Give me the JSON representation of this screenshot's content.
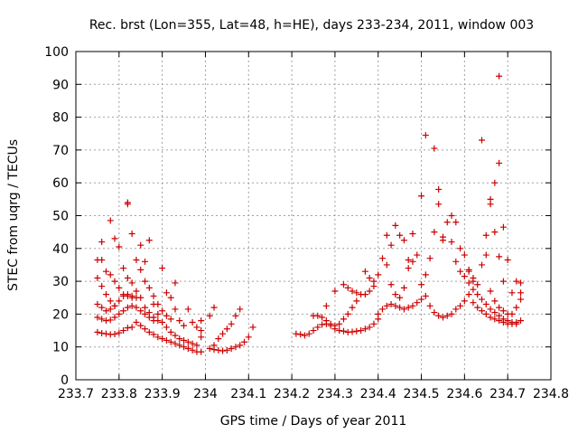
{
  "chart_data": {
    "type": "scatter",
    "title": "Rec. brst (Lon=355, Lat=48, h=HE), days 233-234, 2011, window 003",
    "xlabel": "GPS time / Days of year 2011",
    "ylabel": "STEC from uqrg / TECUs",
    "xlim": [
      233.7,
      234.8
    ],
    "ylim": [
      0,
      100
    ],
    "xticks": [
      233.7,
      233.8,
      233.9,
      234.0,
      234.1,
      234.2,
      234.3,
      234.4,
      234.5,
      234.6,
      234.7,
      234.8
    ],
    "xtick_labels": [
      "233.7",
      "233.8",
      "233.9",
      "234",
      "234.1",
      "234.2",
      "234.3",
      "234.4",
      "234.5",
      "234.6",
      "234.7",
      "234.8"
    ],
    "yticks": [
      0,
      10,
      20,
      30,
      40,
      50,
      60,
      70,
      80,
      90,
      100
    ],
    "ytick_labels": [
      "0",
      "10",
      "20",
      "30",
      "40",
      "50",
      "60",
      "70",
      "80",
      "90",
      "100"
    ],
    "grid": true,
    "marker": "plus",
    "color": "#cc0000",
    "series": [
      {
        "points": [
          [
            233.75,
            14.5
          ],
          [
            233.76,
            14.2
          ],
          [
            233.77,
            14.0
          ],
          [
            233.78,
            13.8
          ],
          [
            233.79,
            13.9
          ],
          [
            233.8,
            14.3
          ],
          [
            233.81,
            15.0
          ],
          [
            233.82,
            15.8
          ],
          [
            233.83,
            16.0
          ],
          [
            233.75,
            19.0
          ],
          [
            233.76,
            18.5
          ],
          [
            233.77,
            18.0
          ],
          [
            233.78,
            18.2
          ],
          [
            233.79,
            19.0
          ],
          [
            233.8,
            20.0
          ],
          [
            233.81,
            21.0
          ],
          [
            233.82,
            22.0
          ],
          [
            233.83,
            22.5
          ],
          [
            233.84,
            22.0
          ],
          [
            233.85,
            21.0
          ],
          [
            233.86,
            20.0
          ],
          [
            233.87,
            19.0
          ],
          [
            233.88,
            18.0
          ],
          [
            233.75,
            23.0
          ],
          [
            233.76,
            22.0
          ],
          [
            233.77,
            21.0
          ],
          [
            233.78,
            21.5
          ],
          [
            233.79,
            22.5
          ],
          [
            233.8,
            24.0
          ],
          [
            233.81,
            25.5
          ],
          [
            233.82,
            26.0
          ],
          [
            233.83,
            25.0
          ],
          [
            233.75,
            31.0
          ],
          [
            233.76,
            28.5
          ],
          [
            233.77,
            26.0
          ],
          [
            233.78,
            24.0
          ],
          [
            233.79,
            22.5
          ],
          [
            233.75,
            36.5
          ],
          [
            233.76,
            36.5
          ],
          [
            233.77,
            33.0
          ],
          [
            233.78,
            32.0
          ],
          [
            233.79,
            30.0
          ],
          [
            233.8,
            28.0
          ],
          [
            233.81,
            26.0
          ],
          [
            233.82,
            25.5
          ],
          [
            233.83,
            25.5
          ],
          [
            233.84,
            25.0
          ],
          [
            233.76,
            42.0
          ],
          [
            233.78,
            48.5
          ],
          [
            233.79,
            43.0
          ],
          [
            233.8,
            40.5
          ],
          [
            233.81,
            34.0
          ],
          [
            233.82,
            31.0
          ],
          [
            233.83,
            29.5
          ],
          [
            233.84,
            27.0
          ],
          [
            233.85,
            25.0
          ],
          [
            233.86,
            22.0
          ],
          [
            233.87,
            20.5
          ],
          [
            233.88,
            19.0
          ],
          [
            233.89,
            18.0
          ],
          [
            233.82,
            54.0
          ],
          [
            233.82,
            53.5
          ],
          [
            233.83,
            44.5
          ],
          [
            233.84,
            36.5
          ],
          [
            233.85,
            33.5
          ],
          [
            233.86,
            30.0
          ],
          [
            233.87,
            28.0
          ],
          [
            233.88,
            25.5
          ],
          [
            233.89,
            23.0
          ],
          [
            233.9,
            21.0
          ],
          [
            233.91,
            19.5
          ],
          [
            233.92,
            18.5
          ],
          [
            233.85,
            41.0
          ],
          [
            233.86,
            36.0
          ],
          [
            233.87,
            42.5
          ],
          [
            233.84,
            17.5
          ],
          [
            233.85,
            16.5
          ],
          [
            233.86,
            15.5
          ],
          [
            233.87,
            14.5
          ],
          [
            233.88,
            13.8
          ],
          [
            233.89,
            13.0
          ],
          [
            233.9,
            12.5
          ],
          [
            233.91,
            12.0
          ],
          [
            233.92,
            11.5
          ],
          [
            233.93,
            11.0
          ],
          [
            233.94,
            10.5
          ],
          [
            233.95,
            10.0
          ],
          [
            233.96,
            9.5
          ],
          [
            233.97,
            9.0
          ],
          [
            233.98,
            8.5
          ],
          [
            233.88,
            23.0
          ],
          [
            233.89,
            20.0
          ],
          [
            233.9,
            17.5
          ],
          [
            233.91,
            16.0
          ],
          [
            233.92,
            14.5
          ],
          [
            233.93,
            13.5
          ],
          [
            233.94,
            12.5
          ],
          [
            233.95,
            12.0
          ],
          [
            233.96,
            11.5
          ],
          [
            233.97,
            11.0
          ],
          [
            233.98,
            10.5
          ],
          [
            233.9,
            34.0
          ],
          [
            233.91,
            26.5
          ],
          [
            233.92,
            25.0
          ],
          [
            233.93,
            29.5
          ],
          [
            233.93,
            21.5
          ],
          [
            233.94,
            18.0
          ],
          [
            233.95,
            16.5
          ],
          [
            233.96,
            21.5
          ],
          [
            233.97,
            17.5
          ],
          [
            233.98,
            16.0
          ],
          [
            233.99,
            18.0
          ],
          [
            233.99,
            15.0
          ],
          [
            233.99,
            13.0
          ],
          [
            233.99,
            8.5
          ],
          [
            234.01,
            9.5
          ],
          [
            234.02,
            9.2
          ],
          [
            234.03,
            9.0
          ],
          [
            234.04,
            8.8
          ],
          [
            234.05,
            9.0
          ],
          [
            234.06,
            9.5
          ],
          [
            234.07,
            10.0
          ],
          [
            234.08,
            10.5
          ],
          [
            234.09,
            11.5
          ],
          [
            234.1,
            13.0
          ],
          [
            234.01,
            19.5
          ],
          [
            234.02,
            22.0
          ],
          [
            234.02,
            10.5
          ],
          [
            234.03,
            12.5
          ],
          [
            234.04,
            14.0
          ],
          [
            234.05,
            15.5
          ],
          [
            234.06,
            17.0
          ],
          [
            234.07,
            19.5
          ],
          [
            234.08,
            21.5
          ],
          [
            234.11,
            16.0
          ],
          [
            234.21,
            14.0
          ],
          [
            234.22,
            13.8
          ],
          [
            234.23,
            13.5
          ],
          [
            234.24,
            14.0
          ],
          [
            234.25,
            15.0
          ],
          [
            234.26,
            16.0
          ],
          [
            234.27,
            16.8
          ],
          [
            234.28,
            17.0
          ],
          [
            234.29,
            16.5
          ],
          [
            234.3,
            15.5
          ],
          [
            234.31,
            15.0
          ],
          [
            234.32,
            14.8
          ],
          [
            234.33,
            14.5
          ],
          [
            234.34,
            14.6
          ],
          [
            234.35,
            14.8
          ],
          [
            234.36,
            15.0
          ],
          [
            234.37,
            15.5
          ],
          [
            234.38,
            16.0
          ],
          [
            234.39,
            17.0
          ],
          [
            234.4,
            18.5
          ],
          [
            234.25,
            19.5
          ],
          [
            234.26,
            19.5
          ],
          [
            234.27,
            19.0
          ],
          [
            234.28,
            18.0
          ],
          [
            234.29,
            17.0
          ],
          [
            234.3,
            16.5
          ],
          [
            234.31,
            17.0
          ],
          [
            234.32,
            18.5
          ],
          [
            234.33,
            20.0
          ],
          [
            234.34,
            22.0
          ],
          [
            234.35,
            24.0
          ],
          [
            234.28,
            22.5
          ],
          [
            234.3,
            27.0
          ],
          [
            234.32,
            29.0
          ],
          [
            234.33,
            28.0
          ],
          [
            234.34,
            27.0
          ],
          [
            234.35,
            26.5
          ],
          [
            234.36,
            26.0
          ],
          [
            234.37,
            26.0
          ],
          [
            234.38,
            27.0
          ],
          [
            234.39,
            28.5
          ],
          [
            234.37,
            33.0
          ],
          [
            234.38,
            31.0
          ],
          [
            234.39,
            30.0
          ],
          [
            234.4,
            20.0
          ],
          [
            234.41,
            21.5
          ],
          [
            234.42,
            22.5
          ],
          [
            234.43,
            23.0
          ],
          [
            234.44,
            22.5
          ],
          [
            234.45,
            22.0
          ],
          [
            234.46,
            21.5
          ],
          [
            234.47,
            22.0
          ],
          [
            234.48,
            22.5
          ],
          [
            234.49,
            23.5
          ],
          [
            234.5,
            24.5
          ],
          [
            234.4,
            32.0
          ],
          [
            234.41,
            37.0
          ],
          [
            234.42,
            35.0
          ],
          [
            234.43,
            29.0
          ],
          [
            234.44,
            26.0
          ],
          [
            234.45,
            25.0
          ],
          [
            234.46,
            28.0
          ],
          [
            234.47,
            34.0
          ],
          [
            234.48,
            36.0
          ],
          [
            234.49,
            38.0
          ],
          [
            234.42,
            44.0
          ],
          [
            234.43,
            41.0
          ],
          [
            234.44,
            47.0
          ],
          [
            234.45,
            44.0
          ],
          [
            234.46,
            42.5
          ],
          [
            234.47,
            36.5
          ],
          [
            234.48,
            44.5
          ],
          [
            234.5,
            56.0
          ],
          [
            234.51,
            74.5
          ],
          [
            234.51,
            32.0
          ],
          [
            234.52,
            37.0
          ],
          [
            234.53,
            70.5
          ],
          [
            234.53,
            45.0
          ],
          [
            234.54,
            58.0
          ],
          [
            234.54,
            53.5
          ],
          [
            234.55,
            43.5
          ],
          [
            234.55,
            42.5
          ],
          [
            234.56,
            48.0
          ],
          [
            234.57,
            50.0
          ],
          [
            234.58,
            48.0
          ],
          [
            234.59,
            40.0
          ],
          [
            234.6,
            38.0
          ],
          [
            234.61,
            33.0
          ],
          [
            234.62,
            30.0
          ],
          [
            234.5,
            29.0
          ],
          [
            234.51,
            25.5
          ],
          [
            234.52,
            22.5
          ],
          [
            234.53,
            20.5
          ],
          [
            234.54,
            19.5
          ],
          [
            234.55,
            19.0
          ],
          [
            234.56,
            19.5
          ],
          [
            234.57,
            20.0
          ],
          [
            234.58,
            21.5
          ],
          [
            234.59,
            22.5
          ],
          [
            234.6,
            24.0
          ],
          [
            234.61,
            26.0
          ],
          [
            234.57,
            42.0
          ],
          [
            234.58,
            36.0
          ],
          [
            234.59,
            33.0
          ],
          [
            234.6,
            31.5
          ],
          [
            234.61,
            29.5
          ],
          [
            234.62,
            27.5
          ],
          [
            234.63,
            26.0
          ],
          [
            234.64,
            24.5
          ],
          [
            234.65,
            23.0
          ],
          [
            234.66,
            21.5
          ],
          [
            234.67,
            20.5
          ],
          [
            234.68,
            19.5
          ],
          [
            234.69,
            18.5
          ],
          [
            234.7,
            18.0
          ],
          [
            234.71,
            17.5
          ],
          [
            234.72,
            17.0
          ],
          [
            234.62,
            23.5
          ],
          [
            234.63,
            22.0
          ],
          [
            234.64,
            21.0
          ],
          [
            234.65,
            20.0
          ],
          [
            234.66,
            19.0
          ],
          [
            234.67,
            18.5
          ],
          [
            234.68,
            18.0
          ],
          [
            234.69,
            17.5
          ],
          [
            234.7,
            17.0
          ],
          [
            234.71,
            17.0
          ],
          [
            234.72,
            17.5
          ],
          [
            234.73,
            18.0
          ],
          [
            234.61,
            33.5
          ],
          [
            234.62,
            31.0
          ],
          [
            234.63,
            29.0
          ],
          [
            234.64,
            35.0
          ],
          [
            234.65,
            44.0
          ],
          [
            234.66,
            53.5
          ],
          [
            234.66,
            55.0
          ],
          [
            234.67,
            45.0
          ],
          [
            234.67,
            60.0
          ],
          [
            234.68,
            66.0
          ],
          [
            234.68,
            92.5
          ],
          [
            234.68,
            37.5
          ],
          [
            234.69,
            46.5
          ],
          [
            234.69,
            30.0
          ],
          [
            234.7,
            36.5
          ],
          [
            234.71,
            26.5
          ],
          [
            234.72,
            30.0
          ],
          [
            234.73,
            29.5
          ],
          [
            234.64,
            73.0
          ],
          [
            234.65,
            38.0
          ],
          [
            234.66,
            27.0
          ],
          [
            234.67,
            24.0
          ],
          [
            234.68,
            22.0
          ],
          [
            234.69,
            21.0
          ],
          [
            234.7,
            20.0
          ],
          [
            234.71,
            20.0
          ],
          [
            234.72,
            22.0
          ],
          [
            234.73,
            24.5
          ],
          [
            234.73,
            26.5
          ]
        ]
      }
    ]
  }
}
